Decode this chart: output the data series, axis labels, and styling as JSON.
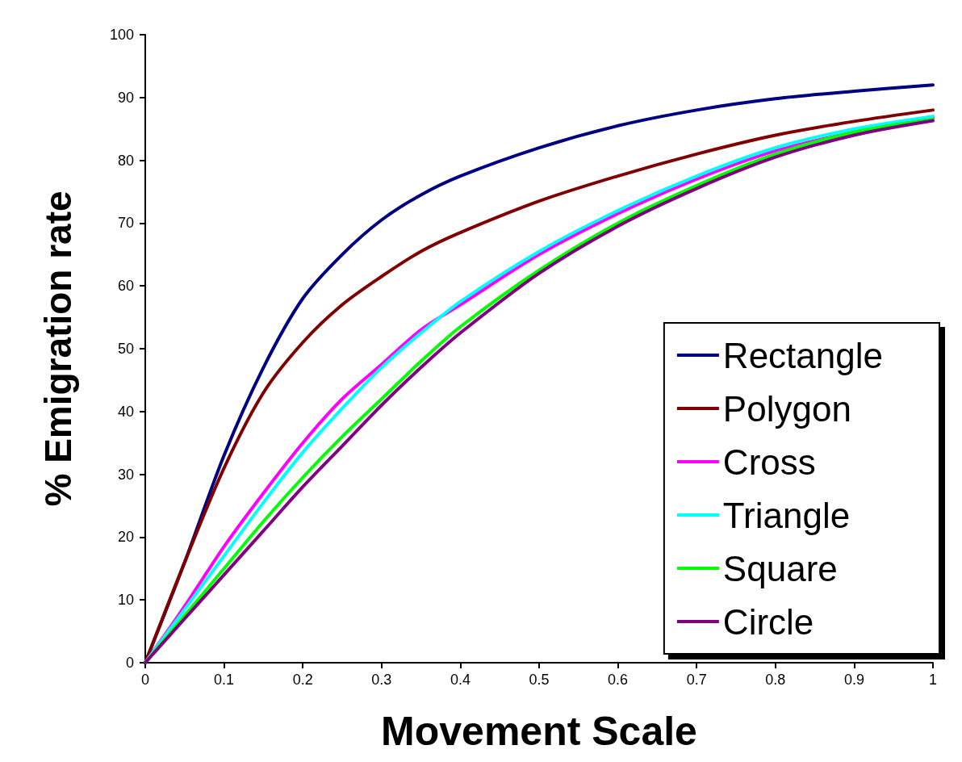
{
  "chart_data": {
    "type": "line",
    "xlabel": "Movement Scale",
    "ylabel": "% Emigration rate",
    "x": [
      0,
      0.05,
      0.1,
      0.15,
      0.2,
      0.25,
      0.3,
      0.35,
      0.4,
      0.5,
      0.6,
      0.7,
      0.8,
      0.9,
      1
    ],
    "series": [
      {
        "name": "Rectangle",
        "color": "#000080",
        "values": [
          0,
          16,
          33,
          47,
          58,
          65,
          70.5,
          74.5,
          77.5,
          82,
          85.5,
          88,
          89.8,
          91,
          92
        ]
      },
      {
        "name": "Polygon",
        "color": "#800000",
        "values": [
          0,
          16,
          31,
          43,
          51,
          57,
          61.5,
          65.5,
          68.5,
          73.5,
          77.5,
          81,
          84,
          86.2,
          88
        ]
      },
      {
        "name": "Cross",
        "color": "#ff00ff",
        "values": [
          0,
          9,
          18.5,
          27,
          35,
          42,
          47.5,
          53,
          57,
          65,
          71.5,
          77,
          81.5,
          84.5,
          86.8
        ]
      },
      {
        "name": "Triangle",
        "color": "#00ffff",
        "values": [
          0,
          8.5,
          17,
          25.5,
          33.5,
          40.5,
          47,
          52.5,
          57.5,
          65.5,
          72,
          77.5,
          82,
          85,
          87
        ]
      },
      {
        "name": "Square",
        "color": "#00ff00",
        "values": [
          0,
          7.5,
          15,
          22.5,
          29.5,
          36,
          42,
          48,
          53.5,
          62.5,
          70,
          76,
          81,
          84.5,
          86.5
        ]
      },
      {
        "name": "Circle",
        "color": "#800080",
        "values": [
          0,
          7,
          14,
          21,
          28,
          34.5,
          41,
          47,
          52.5,
          62,
          69.5,
          75.5,
          80.5,
          84,
          86.3
        ]
      }
    ],
    "xlim": [
      0,
      1
    ],
    "xticks": [
      0,
      0.1,
      0.2,
      0.3,
      0.4,
      0.5,
      0.6,
      0.7,
      0.8,
      0.9,
      1
    ],
    "ylim": [
      0,
      100
    ],
    "yticks": [
      0,
      10,
      20,
      30,
      40,
      50,
      60,
      70,
      80,
      90,
      100
    ],
    "grid": false,
    "legend": "bottom right",
    "marker": "none",
    "line_style": "solid"
  }
}
